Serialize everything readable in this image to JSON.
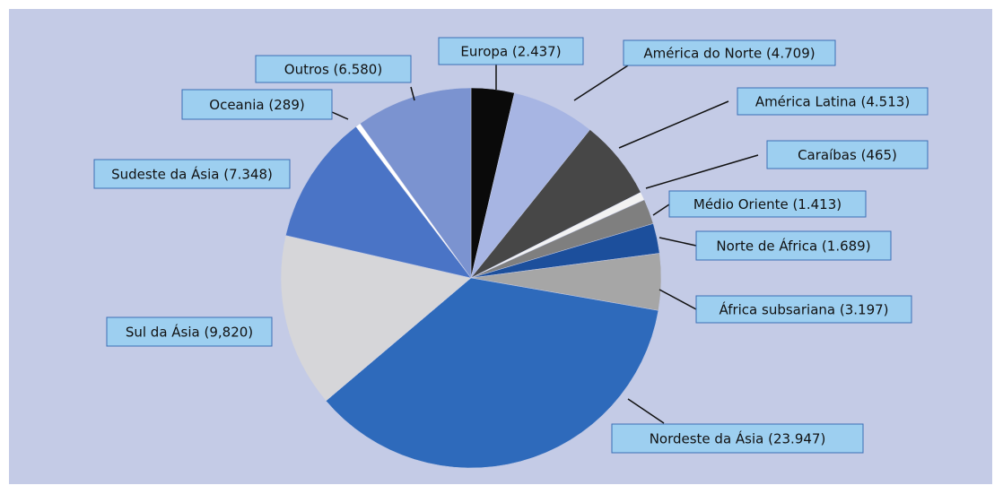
{
  "chart_data": {
    "type": "pie",
    "categories": [
      "Europa (2.437)",
      "América do Norte (4.709)",
      "América Latina (4.513)",
      "Caraíbas (465)",
      "Médio Oriente (1.413)",
      "Norte de África (1.689)",
      "África subsariana (3.197)",
      "Nordeste da Ásia (23.947)",
      "Sul da Ásia (9,820)",
      "Sudeste da Ásia (7.348)",
      "Oceania (289)",
      "Outros (6.580)"
    ],
    "values": [
      2437,
      4709,
      4513,
      465,
      1413,
      1689,
      3197,
      23947,
      9820,
      7348,
      289,
      6580
    ],
    "colors": [
      "#0a0a0a",
      "#a7b5e3",
      "#474747",
      "#f2f2f2",
      "#7f7f7f",
      "#1c4f9c",
      "#a6a6a6",
      "#2e6abb",
      "#d6d6d9",
      "#4a74c6",
      "#ffffff",
      "#7b93d0"
    ]
  }
}
